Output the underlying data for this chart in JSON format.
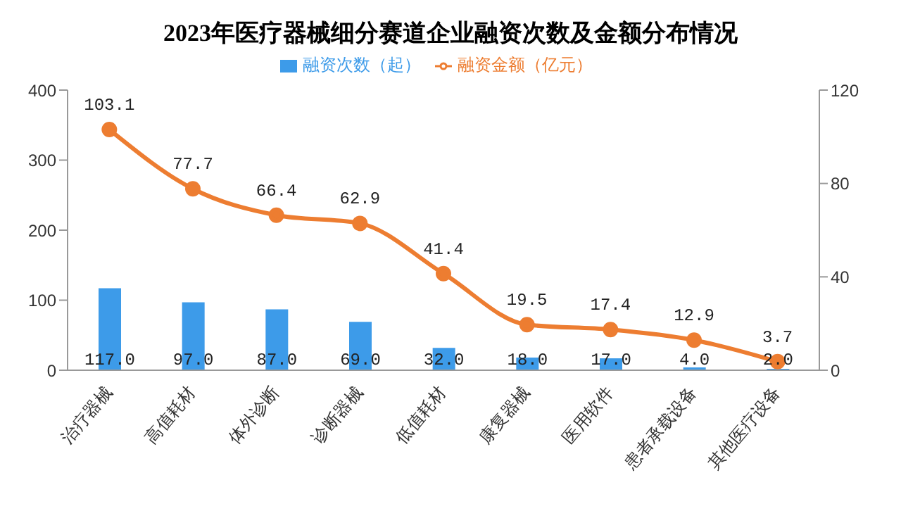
{
  "chart_data": {
    "type": "bar",
    "title": "2023年医疗器械细分赛道企业融资次数及金额分布情况",
    "categories": [
      "治疗器械",
      "高值耗材",
      "体外诊断",
      "诊断器械",
      "低值耗材",
      "康复器械",
      "医用软件",
      "患者承载设备",
      "其他医疗设备"
    ],
    "series": [
      {
        "name": "融资次数（起）",
        "color": "#3d9be9",
        "values": [
          117,
          97,
          87,
          69,
          32,
          18,
          17,
          4,
          2
        ],
        "value_labels": [
          "117.0",
          "97.0",
          "87.0",
          "69.0",
          "32.0",
          "18.0",
          "17.0",
          "4.0",
          "2.0"
        ]
      },
      {
        "name": "融资金额（亿元）",
        "type": "line",
        "axis": "y2",
        "color": "#ed7d31",
        "values": [
          103.1,
          77.7,
          66.4,
          62.9,
          41.4,
          19.5,
          17.4,
          12.9,
          3.7
        ],
        "value_labels": [
          "103.1",
          "77.7",
          "66.4",
          "62.9",
          "41.4",
          "19.5",
          "17.4",
          "12.9",
          "3.7"
        ]
      }
    ],
    "ylim": [
      0,
      400
    ],
    "yticks": [
      0,
      100,
      200,
      300,
      400
    ],
    "y2lim": [
      0,
      120
    ],
    "y2ticks": [
      0,
      40,
      80,
      120
    ],
    "legend": "top",
    "marker": "circle",
    "line_style": "solid"
  }
}
